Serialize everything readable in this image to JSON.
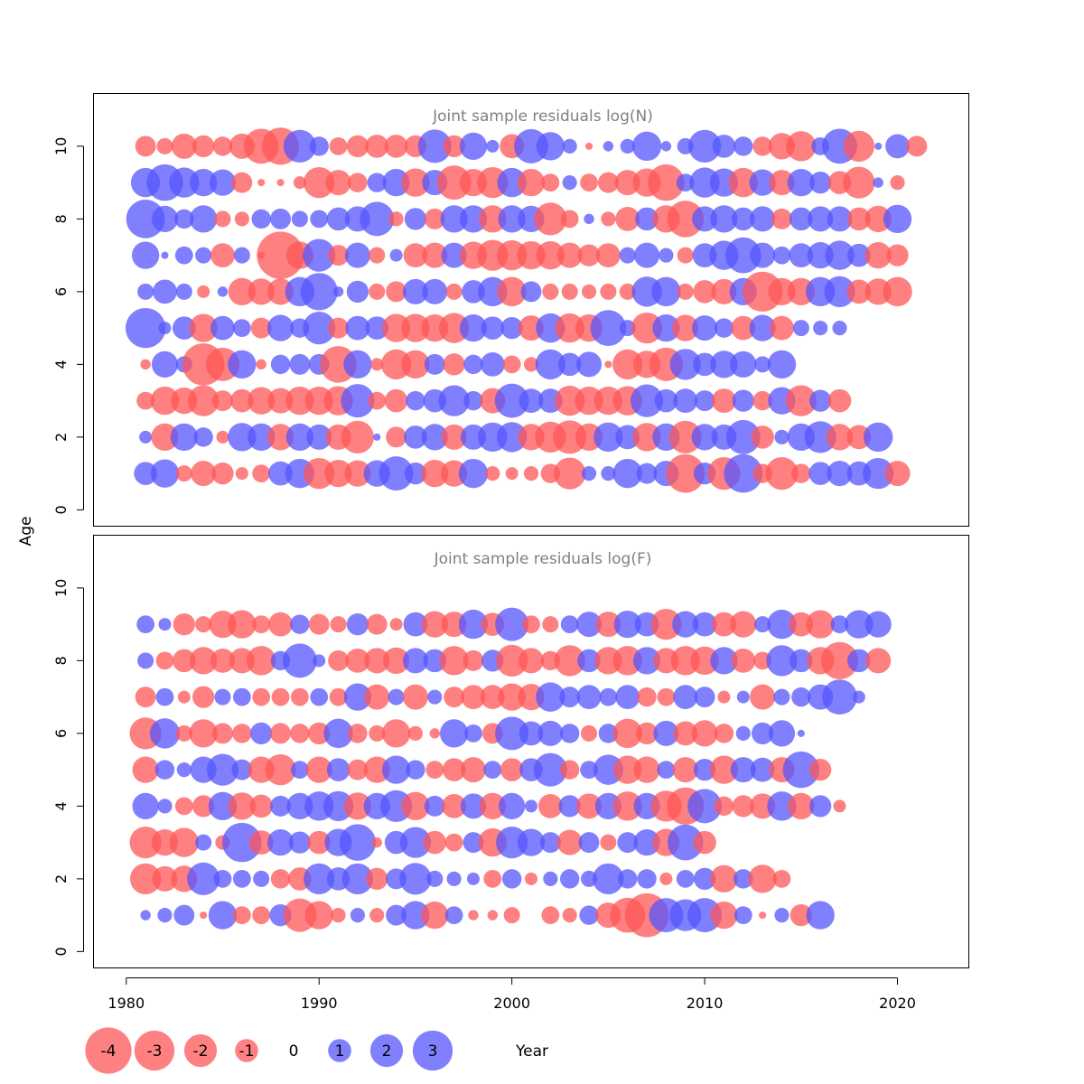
{
  "chart_data": {
    "type": "bubble",
    "x_label": "Year",
    "y_label": "Age",
    "x_ticks": [
      1980,
      1990,
      2000,
      2010,
      2020
    ],
    "y_ticks": [
      0,
      2,
      4,
      6,
      8,
      10
    ],
    "xlim": [
      1978.3,
      2023.7
    ],
    "colors": {
      "positive": "#5555ff",
      "negative": "#ff5555",
      "axis": "#000000",
      "title": "#808080"
    },
    "legend": {
      "values": [
        -4,
        -3,
        -2,
        -1,
        0,
        1,
        2,
        3
      ],
      "labels": [
        "-4",
        "-3",
        "-2",
        "-1",
        "0",
        "1",
        "2",
        "3"
      ]
    },
    "panels": [
      {
        "title": "Joint sample residuals log(N)",
        "ylim": [
          -0.45,
          11.45
        ],
        "first_year": 1981,
        "ages": [
          1,
          2,
          3,
          4,
          5,
          6,
          7,
          8,
          9,
          10
        ],
        "residuals": [
          [
            1.0,
            1.5,
            -0.5,
            -1.2,
            -0.9,
            -0.3,
            -0.6,
            1.1,
            1.6,
            -1.8,
            -1.4,
            -1.3,
            1.3,
            2.2,
            0.9,
            -1.4,
            -1.3,
            1.6,
            -0.4,
            -0.3,
            -0.4,
            -0.7,
            -1.9,
            0.4,
            0.4,
            1.6,
            0.8,
            1.2,
            -2.8,
            0.9,
            -2.0,
            2.8,
            -0.7,
            -2.0,
            -0.7,
            1.0,
            1.2,
            1.1,
            1.8,
            -1.2
          ],
          [
            0.3,
            -1.4,
            1.4,
            0.7,
            -0.3,
            1.5,
            1.4,
            -1.3,
            1.4,
            1.2,
            -1.2,
            -2.0,
            0.1,
            -0.8,
            1.0,
            1.3,
            -1.2,
            1.2,
            1.6,
            1.7,
            -1.3,
            -1.8,
            -2.1,
            -1.4,
            1.6,
            1.1,
            -1.5,
            1.4,
            -2.0,
            1.3,
            1.2,
            2.2,
            -1.0,
            0.4,
            1.4,
            1.9,
            -1.3,
            -1.1,
            1.6
          ],
          [
            -0.6,
            -1.5,
            -1.3,
            -1.8,
            -0.8,
            -1.0,
            -1.4,
            -1.2,
            -1.5,
            -1.5,
            -1.6,
            2.1,
            -0.6,
            -1.0,
            0.7,
            1.0,
            1.8,
            0.7,
            -1.2,
            2.2,
            1.1,
            1.1,
            -1.7,
            -1.5,
            -1.5,
            -1.6,
            2.0,
            1.0,
            1.1,
            0.8,
            -1.1,
            0.9,
            -0.7,
            1.4,
            -1.8,
            0.9,
            -1.0
          ],
          [
            -0.2,
            1.3,
            0.5,
            -3.3,
            -2.1,
            1.5,
            -0.2,
            0.7,
            0.8,
            0.8,
            -2.5,
            1.5,
            -0.3,
            -1.7,
            -1.5,
            0.8,
            -0.9,
            0.7,
            1.1,
            -0.6,
            -0.4,
            1.7,
            1.0,
            1.2,
            -0.1,
            -1.7,
            -1.4,
            -2.1,
            1.8,
            1.0,
            1.4,
            1.3,
            0.5,
            1.5
          ],
          [
            3.0,
            0.3,
            1.0,
            -1.5,
            1.1,
            0.6,
            -0.8,
            1.3,
            0.7,
            2.0,
            -0.8,
            1.1,
            1.0,
            -1.5,
            -1.5,
            -1.4,
            -1.7,
            1.4,
            1.0,
            0.9,
            -1.2,
            1.6,
            -1.6,
            -1.4,
            2.4,
            0.5,
            -1.8,
            1.4,
            -1.3,
            1.2,
            0.7,
            -1.1,
            1.3,
            -1.1,
            0.5,
            0.4,
            0.4
          ],
          [
            0.5,
            1.1,
            0.5,
            -0.3,
            0.2,
            -1.4,
            -1.3,
            -1.3,
            1.6,
            2.6,
            0.2,
            0.9,
            -0.5,
            -0.8,
            1.2,
            1.2,
            -0.5,
            1.0,
            1.6,
            -1.6,
            0.8,
            -0.5,
            -0.5,
            -0.4,
            -0.5,
            -0.5,
            1.7,
            1.6,
            -0.5,
            -1.0,
            -1.2,
            1.4,
            -3.0,
            -1.4,
            -1.4,
            1.6,
            1.8,
            -1.1,
            -1.3,
            -1.6
          ],
          [
            1.4,
            0.1,
            0.6,
            0.5,
            -1.1,
            0.5,
            -0.1,
            -4.2,
            -1.4,
            2.0,
            -0.8,
            1.2,
            -0.5,
            0.3,
            -1.1,
            -1.2,
            1.2,
            -1.4,
            -1.8,
            -1.7,
            -1.5,
            -1.5,
            -1.2,
            -0.9,
            -1.1,
            0.5,
            1.2,
            0.4,
            -0.5,
            1.1,
            1.6,
            2.4,
            1.2,
            0.6,
            1.1,
            1.3,
            1.6,
            1.0,
            -1.3,
            -0.9
          ],
          [
            2.8,
            1.3,
            0.7,
            1.4,
            -0.5,
            -0.4,
            0.7,
            0.8,
            0.5,
            0.6,
            1.0,
            1.2,
            2.2,
            -0.4,
            0.9,
            -0.8,
            1.4,
            1.4,
            -1.4,
            1.4,
            1.3,
            -2.0,
            -0.6,
            0.2,
            -0.4,
            -1.1,
            1.0,
            -1.4,
            -2.5,
            1.2,
            1.4,
            1.0,
            1.2,
            -0.8,
            1.0,
            1.2,
            1.2,
            -1.0,
            -1.3,
            1.5
          ],
          [
            1.6,
            2.5,
            1.7,
            1.4,
            1.3,
            -0.8,
            -0.1,
            -0.1,
            -0.3,
            -1.8,
            -1.2,
            -0.7,
            0.7,
            1.4,
            -1.5,
            1.2,
            -2.2,
            -1.4,
            -1.8,
            1.6,
            -1.4,
            -0.6,
            0.4,
            -0.6,
            -0.8,
            -1.2,
            -1.5,
            -2.5,
            0.6,
            1.7,
            1.5,
            -1.6,
            1.3,
            -1.2,
            1.4,
            0.9,
            -1.0,
            -1.9,
            0.2,
            -0.4
          ],
          [
            -0.8,
            -0.5,
            -1.2,
            -0.9,
            -0.7,
            -1.2,
            -2.3,
            -2.6,
            2.0,
            0.7,
            -0.6,
            -0.9,
            -1.0,
            -1.0,
            -0.9,
            2.1,
            -0.9,
            1.4,
            0.3,
            -1.1,
            2.2,
            1.5,
            0.4,
            -0.1,
            0.2,
            0.4,
            1.6,
            0.2,
            0.5,
            2.0,
            1.0,
            0.7,
            -0.7,
            -1.3,
            -1.7,
            0.6,
            2.3,
            -1.8,
            0.1,
            1.1,
            -0.8
          ]
        ]
      },
      {
        "title": "Joint sample residuals log(F)",
        "ylim": [
          -0.45,
          11.45
        ],
        "first_year": 1981,
        "ages": [
          1,
          2,
          3,
          4,
          5,
          6,
          7,
          8,
          9
        ],
        "residuals": [
          [
            0.2,
            0.4,
            0.8,
            -0.1,
            1.5,
            -0.6,
            -0.6,
            0.9,
            -2.1,
            -1.5,
            -0.4,
            0.4,
            -0.4,
            0.8,
            1.5,
            -1.4,
            0.6,
            -0.2,
            -0.2,
            -0.5,
            0.0,
            -0.6,
            -0.4,
            0.7,
            -1.2,
            -2.3,
            -3.6,
            2.2,
            1.9,
            2.2,
            -1.4,
            0.6,
            -0.1,
            0.4,
            -0.9,
            1.5
          ],
          [
            -1.8,
            -1.2,
            -1.3,
            2.0,
            0.6,
            0.6,
            0.5,
            -0.7,
            -1.0,
            1.8,
            1.0,
            1.8,
            -0.9,
            0.8,
            1.9,
            0.5,
            0.4,
            0.3,
            -0.6,
            0.7,
            -0.3,
            0.4,
            0.7,
            0.5,
            1.8,
            0.7,
            0.7,
            -0.3,
            0.6,
            0.9,
            -1.4,
            0.7,
            -1.5,
            -0.6
          ],
          [
            -1.9,
            -1.3,
            -1.6,
            0.5,
            -0.4,
            2.9,
            -1.1,
            1.3,
            0.9,
            -1.0,
            1.4,
            2.5,
            -0.2,
            1.0,
            1.8,
            -1.0,
            -0.6,
            0.8,
            -1.5,
            1.9,
            1.4,
            0.8,
            -1.2,
            0.8,
            -0.5,
            0.8,
            1.3,
            -1.4,
            2.4,
            -1.0
          ],
          [
            1.3,
            0.4,
            -0.6,
            -0.9,
            1.5,
            -1.4,
            -1.0,
            0.8,
            1.3,
            1.6,
            1.7,
            -1.4,
            1.3,
            1.9,
            -1.5,
            0.8,
            -1.1,
            1.2,
            -1.3,
            1.3,
            0.3,
            -1.1,
            0.9,
            -1.2,
            1.3,
            -1.6,
            1.3,
            -1.8,
            -2.6,
            2.2,
            -0.7,
            -0.9,
            -1.2,
            1.6,
            -1.3,
            0.9,
            -0.3
          ],
          [
            -1.3,
            0.7,
            0.4,
            1.3,
            1.9,
            0.8,
            -1.3,
            -1.8,
            0.6,
            -1.3,
            1.0,
            -0.8,
            -1.3,
            1.5,
            0.7,
            -0.6,
            -1.0,
            -1.2,
            0.6,
            -1.0,
            1.0,
            2.1,
            -0.7,
            0.6,
            1.7,
            -1.5,
            -1.3,
            0.6,
            -1.2,
            0.9,
            -1.5,
            1.2,
            1.1,
            -1.2,
            2.5,
            -0.9
          ],
          [
            -1.9,
            1.7,
            -0.5,
            -1.5,
            -0.8,
            -0.7,
            0.9,
            -0.8,
            -0.7,
            -0.9,
            1.6,
            -0.7,
            -0.5,
            -1.5,
            -0.4,
            -0.2,
            1.5,
            0.6,
            -0.8,
            2.1,
            1.1,
            1.2,
            0.7,
            -0.5,
            0.7,
            -1.6,
            -0.9,
            1.2,
            -1.1,
            -1.3,
            -0.7,
            0.4,
            0.9,
            1.3,
            0.1
          ],
          [
            -0.8,
            0.6,
            -0.3,
            -0.9,
            0.5,
            0.6,
            -0.6,
            -0.6,
            -0.6,
            0.6,
            -0.6,
            1.4,
            -1.2,
            0.5,
            -1.2,
            0.4,
            -0.8,
            -1.1,
            -1.1,
            -1.4,
            -1.3,
            1.6,
            0.8,
            1.1,
            0.6,
            1.1,
            -0.7,
            -0.6,
            1.1,
            0.8,
            -0.3,
            0.3,
            -1.2,
            0.5,
            0.7,
            1.2,
            2.3,
            0.3
          ],
          [
            0.5,
            -0.6,
            -1.0,
            -1.4,
            -1.1,
            -1.2,
            -1.6,
            0.7,
            2.2,
            0.3,
            -0.8,
            -1.1,
            -1.2,
            -1.3,
            1.2,
            1.0,
            -1.6,
            -0.8,
            0.9,
            -1.9,
            -1.2,
            -0.7,
            -1.8,
            1.0,
            -1.4,
            -1.6,
            1.4,
            -1.2,
            -1.6,
            -1.5,
            1.4,
            -1.1,
            -0.6,
            1.8,
            1.0,
            -1.4,
            -2.6,
            1.0,
            -1.2
          ],
          [
            0.6,
            0.3,
            -0.9,
            -0.5,
            -1.4,
            -1.5,
            -0.6,
            -1.1,
            0.7,
            -0.8,
            -0.5,
            0.9,
            -0.8,
            -0.3,
            1.1,
            -1.3,
            -1.2,
            1.6,
            -1.0,
            2.1,
            -0.6,
            -0.5,
            0.6,
            1.2,
            -1.2,
            1.4,
            1.1,
            -1.8,
            1.3,
            1.1,
            -1.1,
            -1.3,
            0.5,
            1.6,
            -1.1,
            -1.5,
            0.6,
            1.5,
            1.3
          ]
        ]
      }
    ]
  }
}
